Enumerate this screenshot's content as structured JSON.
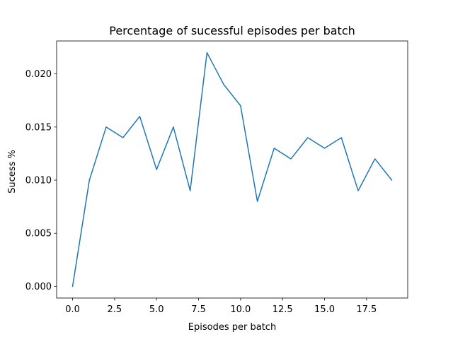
{
  "chart_data": {
    "type": "line",
    "title": "Percentage of sucessful episodes per batch",
    "xlabel": "Episodes per batch",
    "ylabel": "Sucess %",
    "x": [
      0,
      1,
      2,
      3,
      4,
      5,
      6,
      7,
      8,
      9,
      10,
      11,
      12,
      13,
      14,
      15,
      16,
      17,
      18,
      19
    ],
    "series": [
      {
        "values": [
          0.0,
          0.01,
          0.015,
          0.014,
          0.016,
          0.011,
          0.015,
          0.009,
          0.022,
          0.019,
          0.017,
          0.008,
          0.013,
          0.012,
          0.014,
          0.013,
          0.014,
          0.009,
          0.012,
          0.01
        ]
      }
    ],
    "xlim": [
      -0.95,
      19.95
    ],
    "ylim": [
      -0.0011,
      0.0231
    ],
    "x_ticks": [
      0.0,
      2.5,
      5.0,
      7.5,
      10.0,
      12.5,
      15.0,
      17.5
    ],
    "x_tick_labels": [
      "0.0",
      "2.5",
      "5.0",
      "7.5",
      "10.0",
      "12.5",
      "15.0",
      "17.5"
    ],
    "y_ticks": [
      0.0,
      0.005,
      0.01,
      0.015,
      0.02
    ],
    "y_tick_labels": [
      "0.000",
      "0.005",
      "0.010",
      "0.015",
      "0.020"
    ],
    "grid": false,
    "line_color": "#1f77b4"
  }
}
